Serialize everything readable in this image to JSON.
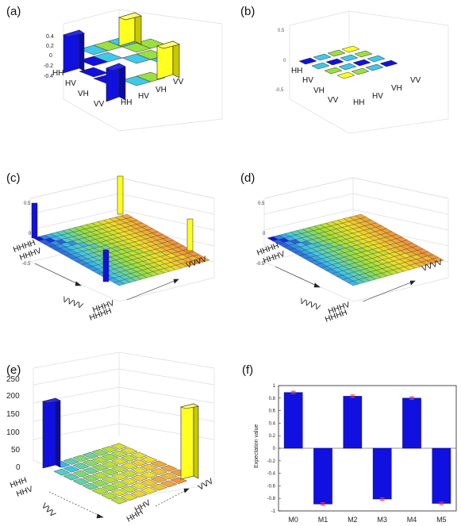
{
  "panels": {
    "a": {
      "label": "(a)",
      "ztick_labels": [
        "0.4",
        "0.2",
        "0",
        "-0.2",
        "-0.4"
      ],
      "row_labels": [
        "HH",
        "HV",
        "VH",
        "VV"
      ],
      "col_labels": [
        "HH",
        "HV",
        "VH",
        "VV"
      ]
    },
    "b": {
      "label": "(b)",
      "row_labels": [
        "HH",
        "HV",
        "VH",
        "VV"
      ],
      "col_labels": [
        "HH",
        "HV",
        "VH",
        "VV"
      ]
    },
    "c": {
      "label": "(c)",
      "ztick_labels": [
        "0.5",
        "0",
        "-0.5"
      ],
      "row_labels": [
        "HHHH",
        "HHHV"
      ],
      "row_end_label": "VVVV",
      "col_labels": [
        "HHHH",
        "HHHV"
      ],
      "col_end_label": "VVVV"
    },
    "d": {
      "label": "(d)",
      "ztick_labels": [
        "0.5",
        "0",
        "-0.5"
      ],
      "row_labels": [
        "HHHH",
        "HHHV"
      ],
      "row_end_label": "VVVV",
      "col_labels": [
        "HHHH",
        "HHHV"
      ],
      "col_end_label": "VVVV"
    },
    "e": {
      "label": "(e)",
      "ztick_labels": [
        "250",
        "200",
        "150",
        "100",
        "50",
        "0"
      ],
      "row_labels": [
        "HHH",
        "HHV"
      ],
      "row_end_label": "VVV",
      "col_labels": [
        "HHH",
        "HHV"
      ],
      "col_end_label": "VVV"
    },
    "f": {
      "label": "(f)"
    }
  },
  "chart_data": [
    {
      "panel": "a",
      "type": "bar",
      "subtype": "3d-bar-density-matrix",
      "rows": [
        "HH",
        "HV",
        "VH",
        "VV"
      ],
      "cols": [
        "HH",
        "HV",
        "VH",
        "VV"
      ],
      "values": [
        [
          0.5,
          0,
          0,
          0.5
        ],
        [
          0,
          0,
          0,
          0
        ],
        [
          0,
          0,
          0,
          0
        ],
        [
          -0.5,
          0,
          0,
          0.5
        ]
      ],
      "zlim": [
        -0.5,
        0.5
      ],
      "colors": {
        "low": "#1010e0",
        "mid": "#40c8e8",
        "midhigh": "#9ae040",
        "high": "#ffff20"
      }
    },
    {
      "panel": "b",
      "type": "bar",
      "subtype": "3d-bar-density-matrix",
      "rows": [
        "HH",
        "HV",
        "VH",
        "VV"
      ],
      "cols": [
        "HH",
        "HV",
        "VH",
        "VV"
      ],
      "values": [
        [
          0,
          0,
          0,
          0
        ],
        [
          0,
          0,
          0,
          0
        ],
        [
          0,
          0,
          0,
          0
        ],
        [
          0,
          0,
          0,
          0
        ]
      ],
      "zlim": [
        -0.5,
        0.5
      ]
    },
    {
      "panel": "c",
      "type": "bar",
      "subtype": "3d-bar-density-matrix",
      "size": 16,
      "corner_values": {
        "HHHH,HHHH": 0.5,
        "HHHH,VVVV": 0.5,
        "VVVV,HHHH": -0.5,
        "VVVV,VVVV": 0.5
      },
      "zlim": [
        -0.5,
        0.5
      ]
    },
    {
      "panel": "d",
      "type": "bar",
      "subtype": "3d-bar-density-matrix",
      "size": 16,
      "zlim": [
        -0.5,
        0.5
      ]
    },
    {
      "panel": "e",
      "type": "bar",
      "subtype": "3d-bar-counts",
      "size": 8,
      "corner_values": {
        "HHH": 190,
        "VVV": 180
      },
      "zlim": [
        0,
        250
      ]
    },
    {
      "panel": "f",
      "type": "bar",
      "categories": [
        "M0",
        "M1",
        "M2",
        "M3",
        "M4",
        "M5"
      ],
      "values": [
        0.89,
        -0.89,
        0.83,
        -0.81,
        0.8,
        -0.88
      ],
      "errors": [
        0.02,
        0.02,
        0.02,
        0.02,
        0.02,
        0.02
      ],
      "ylabel": "Expectation value",
      "ylim": [
        -1,
        1
      ],
      "yticks": [
        "1",
        "0.8",
        "0.6",
        "0.4",
        "0.2",
        "0",
        "-0.2",
        "-0.4",
        "-0.6",
        "-0.8",
        "-1"
      ],
      "bar_color": "#1010e0",
      "error_color": "#ff3030"
    }
  ]
}
